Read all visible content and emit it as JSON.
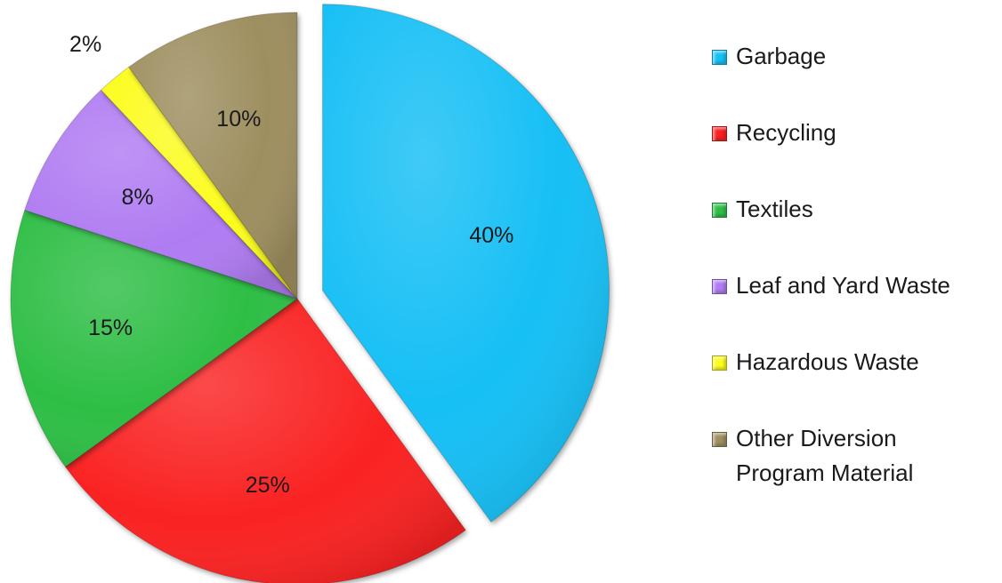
{
  "chart_data": {
    "type": "pie",
    "title": "",
    "legend_position": "right",
    "slices": [
      {
        "name": "Garbage",
        "value": 40,
        "label": "40%",
        "color": "#14BFF5",
        "exploded": true
      },
      {
        "name": "Recycling",
        "value": 25,
        "label": "25%",
        "color": "#FA2020"
      },
      {
        "name": "Textiles",
        "value": 15,
        "label": "15%",
        "color": "#2DBE45"
      },
      {
        "name": "Leaf and Yard Waste",
        "value": 8,
        "label": "8%",
        "color": "#B07CF2"
      },
      {
        "name": "Hazardous Waste",
        "value": 2,
        "label": "2%",
        "color": "#FCFC1E"
      },
      {
        "name": "Other Diversion Program Material",
        "value": 10,
        "label": "10%",
        "color": "#9E8F60"
      }
    ]
  },
  "legend": {
    "items": [
      {
        "label": "Garbage",
        "color": "#14BFF5",
        "icon": "square-swatch"
      },
      {
        "label": "Recycling",
        "color": "#FA2020",
        "icon": "square-swatch"
      },
      {
        "label": "Textiles",
        "color": "#2DBE45",
        "icon": "square-swatch"
      },
      {
        "label": "Leaf and Yard Waste",
        "color": "#B07CF2",
        "icon": "square-swatch"
      },
      {
        "label": "Hazardous Waste",
        "color": "#FCFC1E",
        "icon": "square-swatch"
      },
      {
        "label": "Other Diversion\nProgram Material",
        "color": "#9E8F60",
        "icon": "square-swatch"
      }
    ]
  }
}
